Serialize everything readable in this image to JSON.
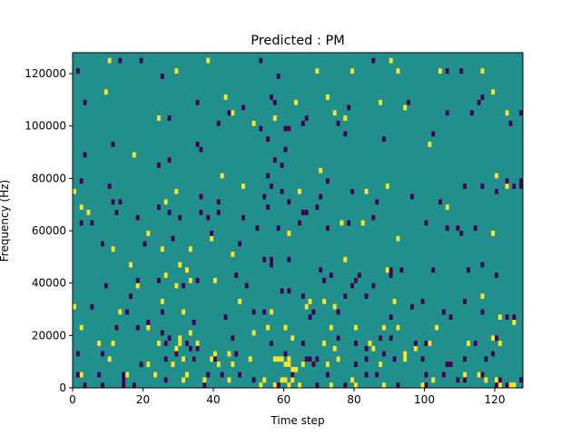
{
  "chart_data": {
    "type": "heatmap",
    "title": "Predicted : PM",
    "xlabel": "Time step",
    "ylabel": "Frequency (Hz)",
    "xlim": [
      0,
      128
    ],
    "ylim": [
      0,
      128000
    ],
    "xticks": [
      0,
      20,
      40,
      60,
      80,
      100,
      120
    ],
    "yticks": [
      0,
      20000,
      40000,
      60000,
      80000,
      100000,
      120000
    ],
    "n_time_steps": 128,
    "n_freq_bins": 64,
    "colormap": "viridis",
    "background_color": "#21908d",
    "high_color": "#fde725",
    "low_color": "#440154",
    "grid": false,
    "cells_high": [
      [
        11,
        63
      ],
      [
        39,
        63
      ],
      [
        91,
        63
      ],
      [
        30,
        61
      ],
      [
        70,
        61
      ],
      [
        80,
        61
      ],
      [
        105,
        61
      ],
      [
        117,
        61
      ],
      [
        93,
        61
      ],
      [
        10,
        57
      ],
      [
        25,
        52
      ],
      [
        44,
        56
      ],
      [
        46,
        53
      ],
      [
        58,
        52
      ],
      [
        64,
        55
      ],
      [
        73,
        56
      ],
      [
        78,
        52
      ],
      [
        88,
        55
      ],
      [
        95,
        54
      ],
      [
        18,
        45
      ],
      [
        43,
        41
      ],
      [
        52,
        51
      ],
      [
        75,
        53
      ],
      [
        102,
        47
      ],
      [
        120,
        57
      ],
      [
        124,
        53
      ],
      [
        1,
        38
      ],
      [
        3,
        35
      ],
      [
        5,
        34
      ],
      [
        27,
        36
      ],
      [
        30,
        38
      ],
      [
        49,
        39
      ],
      [
        65,
        38
      ],
      [
        71,
        42
      ],
      [
        84,
        38
      ],
      [
        90,
        39
      ],
      [
        107,
        35
      ],
      [
        121,
        41
      ],
      [
        124,
        39
      ],
      [
        22,
        30
      ],
      [
        40,
        29
      ],
      [
        62,
        30
      ],
      [
        77,
        32
      ],
      [
        83,
        32
      ],
      [
        93,
        29
      ],
      [
        120,
        30
      ],
      [
        17,
        24
      ],
      [
        26,
        27
      ],
      [
        34,
        27
      ],
      [
        46,
        26
      ],
      [
        78,
        25
      ],
      [
        90,
        23
      ],
      [
        12,
        27
      ],
      [
        31,
        24
      ],
      [
        33,
        23
      ],
      [
        27,
        22
      ],
      [
        30,
        20
      ],
      [
        34,
        21
      ],
      [
        41,
        21
      ],
      [
        19,
        20
      ],
      [
        26,
        17
      ],
      [
        48,
        17
      ],
      [
        68,
        17
      ],
      [
        72,
        17
      ],
      [
        92,
        17
      ],
      [
        117,
        18
      ],
      [
        1,
        16
      ],
      [
        14,
        15
      ],
      [
        32,
        15
      ],
      [
        57,
        15
      ],
      [
        67,
        16
      ],
      [
        75,
        16
      ],
      [
        3,
        12
      ],
      [
        22,
        12
      ],
      [
        34,
        11
      ],
      [
        52,
        11
      ],
      [
        56,
        12
      ],
      [
        61,
        12
      ],
      [
        74,
        12
      ],
      [
        81,
        12
      ],
      [
        89,
        12
      ],
      [
        93,
        12
      ],
      [
        104,
        12
      ],
      [
        122,
        14
      ],
      [
        126,
        13
      ],
      [
        8,
        9
      ],
      [
        12,
        9
      ],
      [
        25,
        9
      ],
      [
        31,
        10
      ],
      [
        36,
        9
      ],
      [
        63,
        10
      ],
      [
        72,
        9
      ],
      [
        76,
        10
      ],
      [
        85,
        9
      ],
      [
        102,
        9
      ],
      [
        113,
        9
      ],
      [
        122,
        9
      ],
      [
        120,
        10
      ],
      [
        40,
        6
      ],
      [
        41,
        7
      ],
      [
        45,
        7
      ],
      [
        51,
        6
      ],
      [
        58,
        6
      ],
      [
        59,
        6
      ],
      [
        60,
        6
      ],
      [
        61,
        5
      ],
      [
        62,
        5
      ],
      [
        63,
        4
      ],
      [
        64,
        4
      ],
      [
        66,
        5
      ],
      [
        75,
        8
      ],
      [
        86,
        8
      ],
      [
        95,
        7
      ],
      [
        98,
        8
      ],
      [
        11,
        6
      ],
      [
        22,
        5
      ],
      [
        29,
        5
      ],
      [
        32,
        6
      ],
      [
        35,
        6
      ],
      [
        42,
        5
      ],
      [
        62,
        6
      ],
      [
        73,
        5
      ],
      [
        76,
        6
      ],
      [
        88,
        5
      ],
      [
        95,
        6
      ],
      [
        30,
        8
      ],
      [
        31,
        9
      ],
      [
        46,
        5
      ],
      [
        3,
        3
      ],
      [
        16,
        3
      ],
      [
        24,
        3
      ],
      [
        33,
        3
      ],
      [
        38,
        2
      ],
      [
        45,
        2
      ],
      [
        55,
        2
      ],
      [
        60,
        2
      ],
      [
        61,
        2
      ],
      [
        62,
        1
      ],
      [
        63,
        2
      ],
      [
        65,
        1
      ],
      [
        74,
        1
      ],
      [
        80,
        2
      ],
      [
        81,
        1
      ],
      [
        100,
        1
      ],
      [
        103,
        2
      ],
      [
        112,
        3
      ],
      [
        121,
        2
      ],
      [
        122,
        1
      ],
      [
        125,
        1
      ],
      [
        126,
        1
      ],
      [
        32,
        2
      ],
      [
        54,
        1
      ],
      [
        58,
        1
      ],
      [
        89,
        1
      ],
      [
        116,
        3
      ],
      [
        118,
        2
      ]
    ],
    "cells_low": [
      [
        2,
        61
      ],
      [
        14,
        63
      ],
      [
        20,
        63
      ],
      [
        26,
        60
      ],
      [
        54,
        63
      ],
      [
        59,
        60
      ],
      [
        86,
        63
      ],
      [
        107,
        61
      ],
      [
        111,
        61
      ],
      [
        4,
        55
      ],
      [
        36,
        55
      ],
      [
        49,
        54
      ],
      [
        57,
        56
      ],
      [
        58,
        55
      ],
      [
        61,
        50
      ],
      [
        67,
        52
      ],
      [
        79,
        54
      ],
      [
        96,
        55
      ],
      [
        117,
        56
      ],
      [
        128,
        53
      ],
      [
        28,
        52
      ],
      [
        45,
        53
      ],
      [
        42,
        51
      ],
      [
        54,
        50
      ],
      [
        62,
        50
      ],
      [
        66,
        51
      ],
      [
        76,
        51
      ],
      [
        78,
        49
      ],
      [
        89,
        48
      ],
      [
        103,
        49
      ],
      [
        107,
        53
      ],
      [
        114,
        53
      ],
      [
        116,
        55
      ],
      [
        125,
        51
      ],
      [
        12,
        47
      ],
      [
        4,
        45
      ],
      [
        25,
        43
      ],
      [
        28,
        44
      ],
      [
        36,
        47
      ],
      [
        37,
        46
      ],
      [
        56,
        48
      ],
      [
        58,
        44
      ],
      [
        60,
        43
      ],
      [
        61,
        46
      ],
      [
        3,
        40
      ],
      [
        11,
        39
      ],
      [
        14,
        36
      ],
      [
        37,
        37
      ],
      [
        42,
        36
      ],
      [
        56,
        41
      ],
      [
        57,
        39
      ],
      [
        60,
        38
      ],
      [
        62,
        36
      ],
      [
        71,
        37
      ],
      [
        73,
        40
      ],
      [
        80,
        38
      ],
      [
        97,
        37
      ],
      [
        105,
        36
      ],
      [
        112,
        39
      ],
      [
        117,
        39
      ],
      [
        121,
        38
      ],
      [
        124,
        40
      ],
      [
        126,
        39
      ],
      [
        128,
        40
      ],
      [
        128,
        39
      ],
      [
        12,
        36
      ],
      [
        13,
        34
      ],
      [
        19,
        33
      ],
      [
        25,
        35
      ],
      [
        28,
        34
      ],
      [
        37,
        34
      ],
      [
        39,
        33
      ],
      [
        40,
        30
      ],
      [
        55,
        37
      ],
      [
        56,
        35
      ],
      [
        65,
        32
      ],
      [
        66,
        34
      ],
      [
        70,
        35
      ],
      [
        3,
        32
      ],
      [
        6,
        32
      ],
      [
        29,
        29
      ],
      [
        31,
        33
      ],
      [
        42,
        34
      ],
      [
        49,
        33
      ],
      [
        53,
        31
      ],
      [
        59,
        31
      ],
      [
        67,
        34
      ],
      [
        73,
        31
      ],
      [
        79,
        32
      ],
      [
        86,
        33
      ],
      [
        87,
        36
      ],
      [
        101,
        32
      ],
      [
        107,
        31
      ],
      [
        110,
        31
      ],
      [
        111,
        30
      ],
      [
        115,
        31
      ],
      [
        9,
        28
      ],
      [
        21,
        28
      ],
      [
        48,
        28
      ],
      [
        55,
        25
      ],
      [
        57,
        25
      ],
      [
        57,
        24
      ],
      [
        62,
        25
      ],
      [
        71,
        23
      ],
      [
        74,
        22
      ],
      [
        80,
        20
      ],
      [
        82,
        22
      ],
      [
        91,
        22
      ],
      [
        94,
        23
      ],
      [
        103,
        23
      ],
      [
        113,
        23
      ],
      [
        117,
        24
      ],
      [
        121,
        22
      ],
      [
        10,
        20
      ],
      [
        17,
        18
      ],
      [
        19,
        21
      ],
      [
        25,
        21
      ],
      [
        32,
        20
      ],
      [
        36,
        21
      ],
      [
        47,
        22
      ],
      [
        50,
        20
      ],
      [
        60,
        19
      ],
      [
        62,
        19
      ],
      [
        66,
        18
      ],
      [
        72,
        21
      ],
      [
        78,
        18
      ],
      [
        81,
        21
      ],
      [
        84,
        18
      ],
      [
        86,
        20
      ],
      [
        91,
        23
      ],
      [
        6,
        16
      ],
      [
        16,
        15
      ],
      [
        22,
        13
      ],
      [
        26,
        15
      ],
      [
        35,
        13
      ],
      [
        44,
        14
      ],
      [
        52,
        15
      ],
      [
        55,
        15
      ],
      [
        68,
        14
      ],
      [
        69,
        15
      ],
      [
        76,
        15
      ],
      [
        91,
        14
      ],
      [
        97,
        16
      ],
      [
        100,
        17
      ],
      [
        106,
        15
      ],
      [
        108,
        14
      ],
      [
        112,
        17
      ],
      [
        117,
        15
      ],
      [
        124,
        14
      ],
      [
        126,
        14
      ],
      [
        13,
        12
      ],
      [
        19,
        12
      ],
      [
        26,
        11
      ],
      [
        27,
        9
      ],
      [
        28,
        10
      ],
      [
        33,
        9
      ],
      [
        34,
        8
      ],
      [
        36,
        8
      ],
      [
        46,
        10
      ],
      [
        57,
        9
      ],
      [
        66,
        9
      ],
      [
        76,
        10
      ],
      [
        81,
        9
      ],
      [
        84,
        8
      ],
      [
        88,
        10
      ],
      [
        91,
        10
      ],
      [
        98,
        9
      ],
      [
        101,
        9
      ],
      [
        115,
        9
      ],
      [
        121,
        10
      ],
      [
        2,
        7
      ],
      [
        9,
        7
      ],
      [
        20,
        5
      ],
      [
        27,
        6
      ],
      [
        30,
        7
      ],
      [
        35,
        6
      ],
      [
        41,
        6
      ],
      [
        47,
        7
      ],
      [
        61,
        7
      ],
      [
        67,
        6
      ],
      [
        68,
        6
      ],
      [
        69,
        5
      ],
      [
        70,
        6
      ],
      [
        81,
        5
      ],
      [
        84,
        6
      ],
      [
        89,
        7
      ],
      [
        92,
        6
      ],
      [
        100,
        6
      ],
      [
        107,
        5
      ],
      [
        108,
        5
      ],
      [
        112,
        6
      ],
      [
        118,
        6
      ],
      [
        120,
        7
      ],
      [
        2,
        3
      ],
      [
        8,
        3
      ],
      [
        15,
        3
      ],
      [
        15,
        2
      ],
      [
        15,
        1
      ],
      [
        27,
        2
      ],
      [
        39,
        3
      ],
      [
        43,
        3
      ],
      [
        48,
        3
      ],
      [
        52,
        2
      ],
      [
        63,
        3
      ],
      [
        73,
        3
      ],
      [
        84,
        3
      ],
      [
        87,
        3
      ],
      [
        101,
        3
      ],
      [
        106,
        3
      ],
      [
        110,
        2
      ],
      [
        112,
        2
      ],
      [
        117,
        3
      ],
      [
        122,
        2
      ],
      [
        128,
        2
      ],
      [
        4,
        1
      ],
      [
        9,
        1
      ],
      [
        18,
        1
      ],
      [
        38,
        1
      ],
      [
        59,
        1
      ],
      [
        70,
        1
      ],
      [
        78,
        1
      ],
      [
        93,
        1
      ],
      [
        101,
        1
      ],
      [
        121,
        1
      ],
      [
        124,
        1
      ]
    ]
  }
}
